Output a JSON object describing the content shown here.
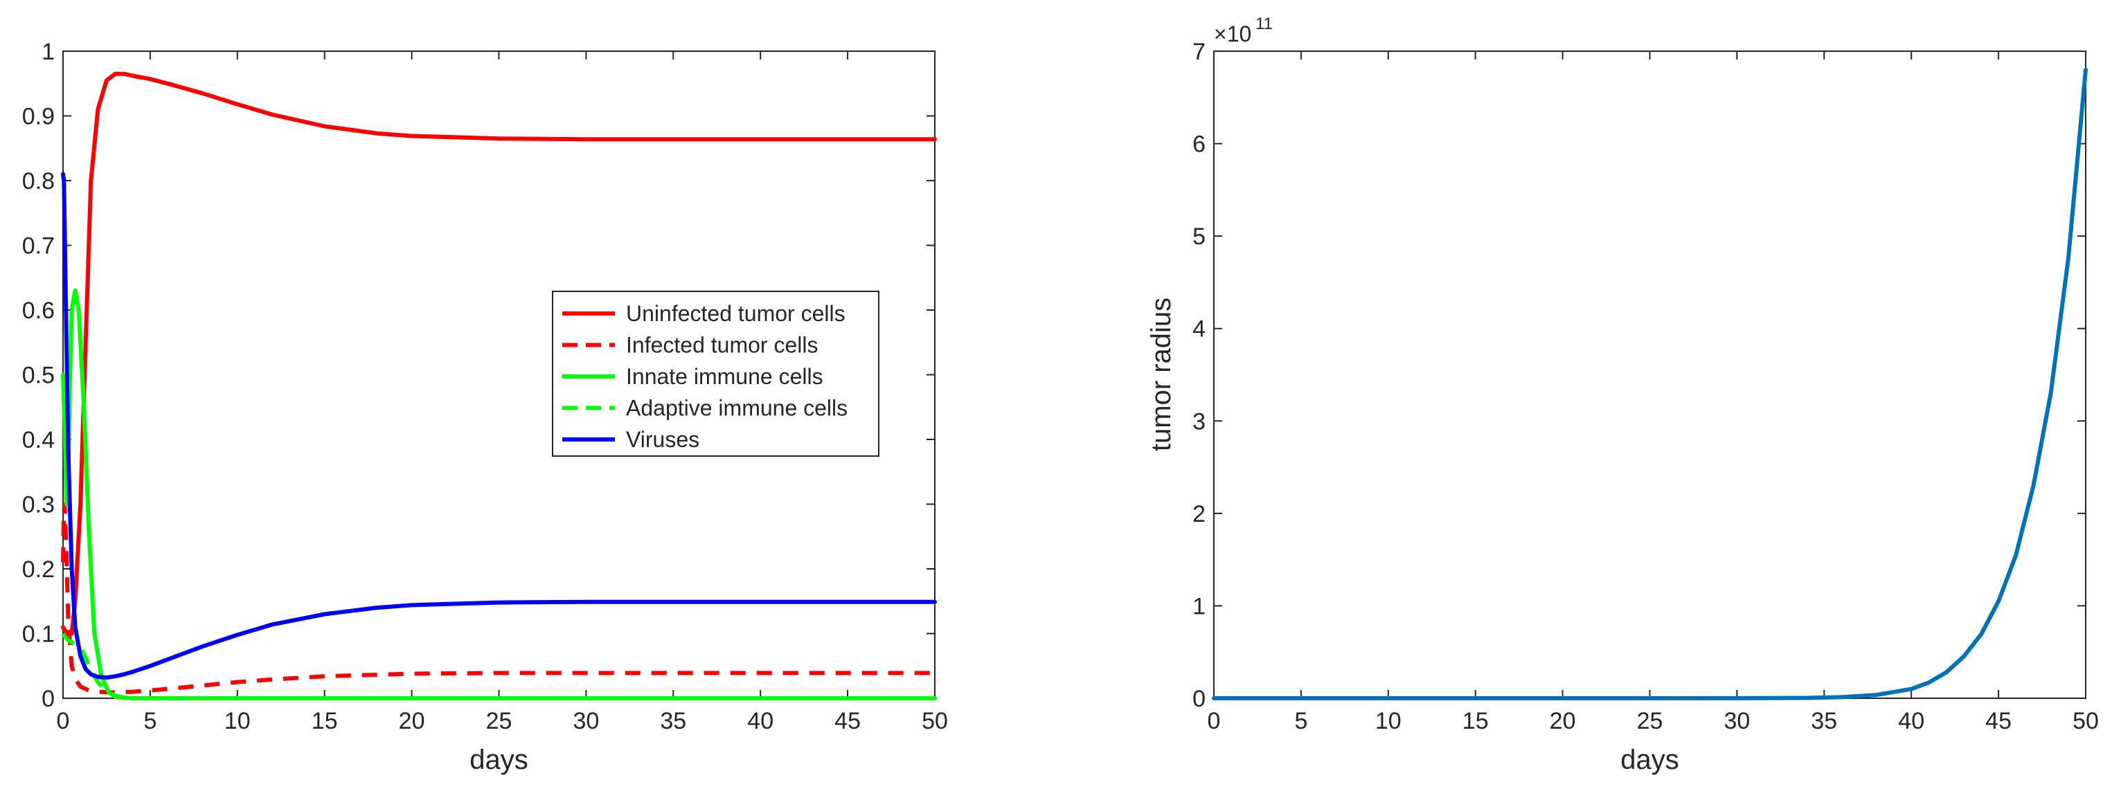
{
  "colors": {
    "red": "#ff0000",
    "green": "#00ff00",
    "blue": "#0000ff",
    "steel_blue": "#0072bd",
    "axis": "#262626"
  },
  "chart_data": [
    {
      "type": "line",
      "title": "",
      "xlabel": "days",
      "ylabel": "",
      "xlim": [
        0,
        50
      ],
      "ylim": [
        0,
        1
      ],
      "grid": false,
      "legend_position": "center-right",
      "xticks": [
        0,
        5,
        10,
        15,
        20,
        25,
        30,
        35,
        40,
        45,
        50
      ],
      "xtick_labels": [
        "0",
        "5",
        "10",
        "15",
        "20",
        "25",
        "30",
        "35",
        "40",
        "45",
        "50"
      ],
      "yticks": [
        0,
        0.1,
        0.2,
        0.3,
        0.4,
        0.5,
        0.6,
        0.7,
        0.8,
        0.9,
        1
      ],
      "ytick_labels": [
        "0",
        "0.1",
        "0.2",
        "0.3",
        "0.4",
        "0.5",
        "0.6",
        "0.7",
        "0.8",
        "0.9",
        "1"
      ],
      "series": [
        {
          "name": "Uninfected tumor cells",
          "color": "#ff0000",
          "style": "solid",
          "x": [
            0,
            0.1,
            0.3,
            0.5,
            0.7,
            1.0,
            1.3,
            1.6,
            2.0,
            2.5,
            3.0,
            3.5,
            4,
            5,
            6,
            8,
            10,
            12,
            15,
            18,
            20,
            25,
            30,
            35,
            40,
            45,
            50
          ],
          "y": [
            0.11,
            0.105,
            0.098,
            0.1,
            0.15,
            0.3,
            0.55,
            0.8,
            0.91,
            0.955,
            0.965,
            0.965,
            0.962,
            0.957,
            0.95,
            0.935,
            0.918,
            0.902,
            0.884,
            0.873,
            0.869,
            0.865,
            0.864,
            0.864,
            0.864,
            0.864,
            0.864
          ]
        },
        {
          "name": "Infected tumor cells",
          "color": "#ff0000",
          "style": "dashed",
          "x": [
            0,
            0.05,
            0.1,
            0.2,
            0.3,
            0.5,
            0.7,
            1.0,
            1.5,
            2.0,
            3.0,
            4,
            5,
            7,
            10,
            12,
            15,
            20,
            25,
            30,
            35,
            40,
            45,
            50
          ],
          "y": [
            0.21,
            0.29,
            0.3,
            0.22,
            0.12,
            0.05,
            0.03,
            0.018,
            0.012,
            0.01,
            0.009,
            0.01,
            0.012,
            0.017,
            0.025,
            0.029,
            0.034,
            0.038,
            0.039,
            0.039,
            0.039,
            0.039,
            0.039,
            0.039
          ]
        },
        {
          "name": "Innate immune cells",
          "color": "#00ff00",
          "style": "solid",
          "x": [
            0,
            0.1,
            0.2,
            0.3,
            0.4,
            0.5,
            0.7,
            0.9,
            1.2,
            1.5,
            1.8,
            2.2,
            2.6,
            3.0,
            4,
            5,
            10,
            20,
            30,
            40,
            50
          ],
          "y": [
            0.5,
            0.42,
            0.3,
            0.35,
            0.5,
            0.6,
            0.63,
            0.6,
            0.45,
            0.25,
            0.1,
            0.035,
            0.01,
            0.002,
            0,
            0,
            0,
            0,
            0,
            0,
            0
          ]
        },
        {
          "name": "Adaptive immune cells",
          "color": "#00ff00",
          "style": "dashed",
          "x": [
            0,
            0.1,
            0.3,
            0.6,
            1.0,
            1.5,
            2.0,
            2.5,
            3.0,
            3.5,
            4,
            5,
            10,
            20,
            30,
            40,
            50
          ],
          "y": [
            0.1,
            0.095,
            0.09,
            0.085,
            0.08,
            0.05,
            0.025,
            0.01,
            0.004,
            0.001,
            0,
            0,
            0,
            0,
            0,
            0,
            0
          ]
        },
        {
          "name": "Viruses",
          "color": "#0000ff",
          "style": "solid",
          "x": [
            0,
            0.05,
            0.1,
            0.2,
            0.3,
            0.5,
            0.7,
            1.0,
            1.3,
            1.6,
            2.0,
            2.5,
            3.0,
            3.5,
            4,
            5,
            6,
            8,
            10,
            12,
            15,
            18,
            20,
            25,
            30,
            35,
            40,
            45,
            50
          ],
          "y": [
            0.81,
            0.8,
            0.72,
            0.55,
            0.38,
            0.2,
            0.11,
            0.065,
            0.045,
            0.037,
            0.033,
            0.032,
            0.034,
            0.037,
            0.041,
            0.05,
            0.06,
            0.08,
            0.098,
            0.114,
            0.13,
            0.14,
            0.144,
            0.148,
            0.149,
            0.149,
            0.149,
            0.149,
            0.149
          ]
        }
      ]
    },
    {
      "type": "line",
      "title": "",
      "xlabel": "days",
      "ylabel": "tumor radius",
      "exponent_label": "×10",
      "exponent_power": "11",
      "xlim": [
        0,
        50
      ],
      "ylim": [
        0,
        7
      ],
      "grid": false,
      "xticks": [
        0,
        5,
        10,
        15,
        20,
        25,
        30,
        35,
        40,
        45,
        50
      ],
      "xtick_labels": [
        "0",
        "5",
        "10",
        "15",
        "20",
        "25",
        "30",
        "35",
        "40",
        "45",
        "50"
      ],
      "yticks": [
        0,
        1,
        2,
        3,
        4,
        5,
        6,
        7
      ],
      "ytick_labels": [
        "0",
        "1",
        "2",
        "3",
        "4",
        "5",
        "6",
        "7"
      ],
      "series": [
        {
          "name": "tumor radius",
          "color": "#0072bd",
          "style": "solid",
          "x": [
            0,
            10,
            20,
            30,
            34,
            36,
            38,
            40,
            41,
            42,
            43,
            44,
            45,
            46,
            47,
            48,
            49,
            50
          ],
          "y": [
            0,
            0,
            0,
            0.0008,
            0.004,
            0.012,
            0.036,
            0.1,
            0.17,
            0.28,
            0.45,
            0.69,
            1.05,
            1.55,
            2.3,
            3.3,
            4.75,
            6.8
          ]
        }
      ]
    }
  ]
}
